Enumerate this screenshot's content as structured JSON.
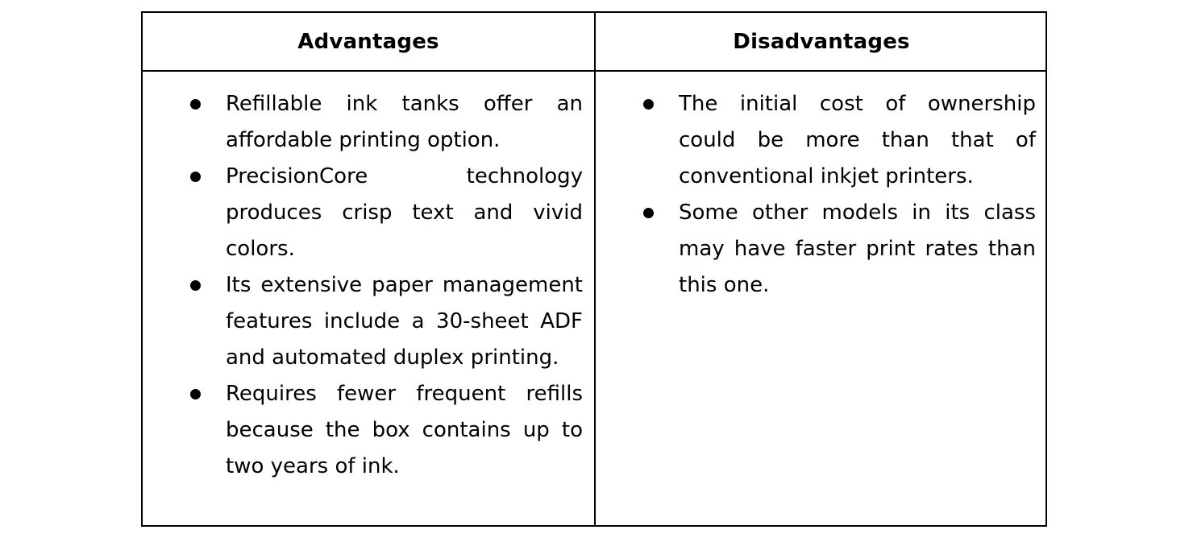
{
  "table": {
    "headers": {
      "advantages": "Advantages",
      "disadvantages": "Disadvantages"
    },
    "advantages": [
      "Refillable ink tanks offer an affordable printing option.",
      "PrecisionCore technology produces crisp text and vivid colors.",
      "Its extensive paper management features include a 30-sheet ADF and automated duplex printing.",
      "Requires fewer frequent refills because the box contains up to two years of ink."
    ],
    "disadvantages": [
      "The initial cost of ownership could be more than that of conventional inkjet printers.",
      "Some other models in its class may have faster print rates than this one."
    ]
  }
}
